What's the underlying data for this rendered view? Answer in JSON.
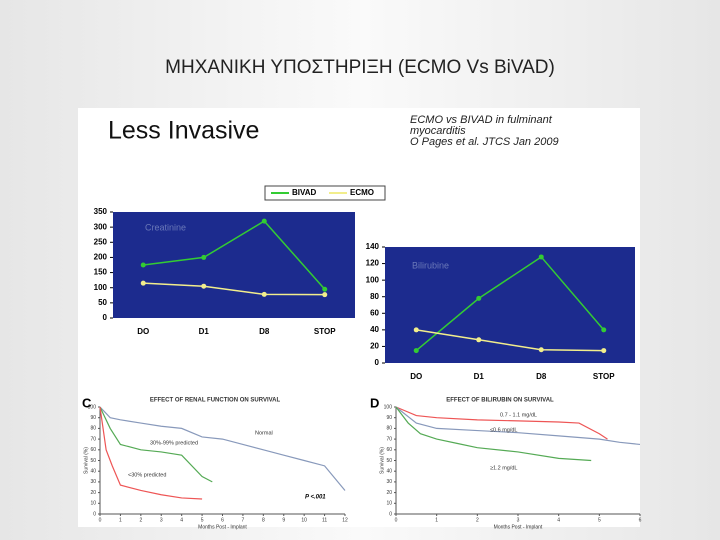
{
  "slide_title": "ΜΗΧΑΝΙΚΗ ΥΠΟΣΤΗΡΙΞΗ (ECMO Vs BiVAD)",
  "panel_heading": "Less Invasive",
  "chart_data": [
    {
      "type": "line",
      "annotation": "Creatinine",
      "legend": "top",
      "categories": [
        "DO",
        "D1",
        "D8",
        "STOP"
      ],
      "series": [
        {
          "name": "BIVAD",
          "color": "#33cc33",
          "values": [
            175,
            200,
            320,
            95
          ]
        },
        {
          "name": "ECMO",
          "color": "#f2ee8c",
          "values": [
            115,
            105,
            78,
            77
          ]
        }
      ],
      "ylim": [
        0,
        350
      ],
      "yticks": [
        0,
        50,
        100,
        150,
        200,
        250,
        300,
        350
      ]
    },
    {
      "type": "line",
      "annotation": "Bilirubine",
      "notes": [
        "ECMO vs BIVAD in fulminant",
        "myocarditis",
        "O Pages et al. JTCS Jan 2009"
      ],
      "categories": [
        "DO",
        "D1",
        "D8",
        "STOP"
      ],
      "series": [
        {
          "color": "#33cc33",
          "values": [
            15,
            78,
            128,
            40
          ]
        },
        {
          "color": "#f2ee8c",
          "values": [
            40,
            28,
            16,
            15
          ]
        }
      ],
      "ylim": [
        0,
        140
      ],
      "yticks": [
        0,
        20,
        40,
        60,
        80,
        100,
        120,
        140
      ]
    },
    {
      "type": "survival",
      "panel_label": "C",
      "title": "EFFECT OF RENAL FUNCTION ON SURVIVAL",
      "xlabel": "Months Post - Implant",
      "ylabel": "Survival (%)",
      "annotation": "P <.001",
      "series": [
        {
          "name": "Normal",
          "color": "#8899bb",
          "x": [
            0,
            0.5,
            1,
            2,
            3,
            4,
            5,
            6,
            7,
            8,
            9,
            10,
            11,
            12
          ],
          "values": [
            100,
            90,
            88,
            85,
            82,
            80,
            72,
            70,
            65,
            60,
            55,
            50,
            45,
            22
          ]
        },
        {
          "name": "30%-99% predicted",
          "color": "#55aa55",
          "x": [
            0,
            0.5,
            1,
            2,
            3,
            4,
            5,
            5.5
          ],
          "values": [
            100,
            80,
            65,
            60,
            58,
            55,
            35,
            30
          ]
        },
        {
          "name": "<30% predicted",
          "color": "#ee5555",
          "x": [
            0,
            0.3,
            0.6,
            1,
            2,
            3,
            4,
            5
          ],
          "values": [
            100,
            60,
            45,
            27,
            22,
            18,
            15,
            14
          ]
        }
      ],
      "xlim": [
        0,
        12
      ],
      "xticks": [
        0,
        1,
        2,
        3,
        4,
        5,
        6,
        7,
        8,
        9,
        10,
        11,
        12
      ],
      "ylim": [
        0,
        100
      ],
      "yticks": [
        0,
        10,
        20,
        30,
        40,
        50,
        60,
        70,
        80,
        90,
        100
      ]
    },
    {
      "type": "survival",
      "panel_label": "D",
      "title": "EFFECT OF BILIRUBIN ON SURVIVAL",
      "xlabel": "Months Post - Implant",
      "ylabel": "Survival (%)",
      "series": [
        {
          "name": "0.7 - 1.1 mg/dL",
          "color": "#ee5555",
          "x": [
            0,
            0.5,
            1,
            2,
            3,
            4,
            4.5,
            5,
            5.2
          ],
          "values": [
            100,
            92,
            90,
            88,
            87,
            86,
            85,
            75,
            70
          ]
        },
        {
          "name": "≤0.6 mg/dL",
          "color": "#8899bb",
          "x": [
            0,
            0.5,
            1,
            2,
            3,
            4,
            5,
            5.5,
            6
          ],
          "values": [
            100,
            85,
            80,
            78,
            76,
            73,
            70,
            67,
            65
          ]
        },
        {
          "name": "≥1.2 mg/dL",
          "color": "#55aa55",
          "x": [
            0,
            0.3,
            0.6,
            1,
            1.5,
            2,
            3,
            4,
            4.8
          ],
          "values": [
            100,
            85,
            75,
            70,
            66,
            62,
            58,
            52,
            50
          ]
        }
      ],
      "xlim": [
        0,
        6
      ],
      "xticks": [
        0,
        1,
        2,
        3,
        4,
        5,
        6
      ],
      "ylim": [
        0,
        100
      ],
      "yticks": [
        0,
        10,
        20,
        30,
        40,
        50,
        60,
        70,
        80,
        90,
        100
      ]
    }
  ]
}
